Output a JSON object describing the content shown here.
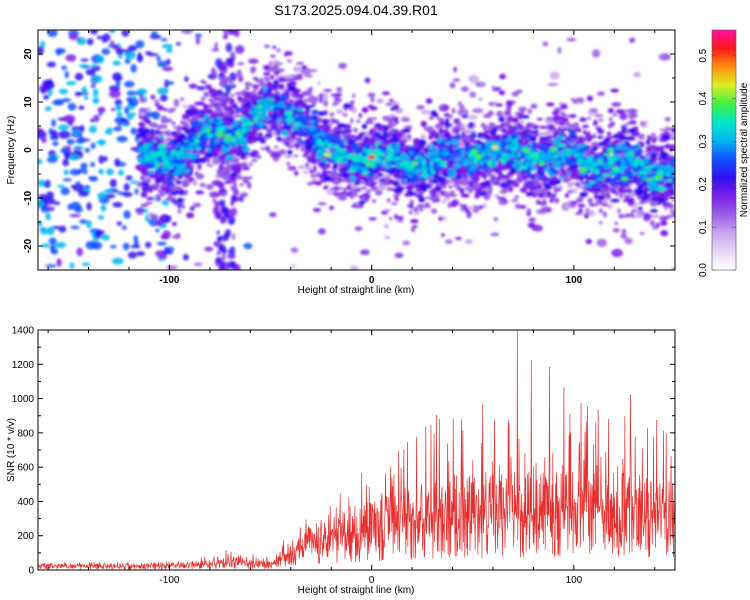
{
  "title": "S173.2025.094.04.39.R01",
  "colors": {
    "snr_line": "#e83030",
    "axis": "#000000"
  },
  "colormap": [
    "#ffffff",
    "#e6d6f6",
    "#c9a6ef",
    "#9a5ee6",
    "#7a1ee8",
    "#3010f0",
    "#1050ff",
    "#00b4f0",
    "#00e8c8",
    "#40f040",
    "#d8f020",
    "#ff9010",
    "#ff1818",
    "#ff10a0"
  ],
  "chart_data": [
    {
      "type": "heatmap",
      "xlabel": "Height of straight line (km)",
      "ylabel": "Frequency (Hz)",
      "xlim": [
        -165,
        150
      ],
      "ylim": [
        -25,
        25
      ],
      "xticks": [
        -100,
        0,
        100
      ],
      "yticks": [
        -20,
        -10,
        0,
        10,
        20
      ],
      "ridge": {
        "x": [
          -160,
          -140,
          -120,
          -105,
          -95,
          -85,
          -75,
          -65,
          -55,
          -45,
          -35,
          -25,
          -15,
          0,
          20,
          40,
          60,
          80,
          100,
          120,
          140,
          150
        ],
        "freq_hz": [
          -4,
          -4,
          -3,
          -2,
          -1,
          2,
          3,
          4,
          7,
          9,
          7,
          0,
          -1,
          -1,
          -3,
          -2,
          -1,
          -1,
          -2,
          -3,
          -5,
          -4
        ]
      },
      "peaks": [
        {
          "x": 0,
          "freq_hz": -1.5,
          "amplitude": 0.5
        },
        {
          "x": -22,
          "freq_hz": -1,
          "amplitude": 0.45
        },
        {
          "x": 61,
          "freq_hz": 0.5,
          "amplitude": 0.42
        },
        {
          "x": 125,
          "freq_hz": -6,
          "amplitude": 0.38
        },
        {
          "x": -80,
          "freq_hz": 3,
          "amplitude": 0.35
        }
      ],
      "colorbar": {
        "label": "Normalized spectral amplitude",
        "range": [
          0,
          0.56
        ],
        "ticks": [
          "0.0",
          "0.1",
          "0.2",
          "0.3",
          "0.4",
          "0.5"
        ]
      }
    },
    {
      "type": "line",
      "xlabel": "Height of straight line (km)",
      "ylabel": "SNR (10 * v/v)",
      "xlim": [
        -165,
        150
      ],
      "ylim": [
        0,
        1400
      ],
      "xticks": [
        -100,
        0,
        100
      ],
      "yticks": [
        0,
        200,
        400,
        600,
        800,
        1000,
        1200,
        1400
      ],
      "series": [
        {
          "envelope_x": [
            -165,
            -100,
            -80,
            -70,
            -60,
            -50,
            -40,
            -30,
            -20,
            -10,
            0,
            10,
            20,
            40,
            60,
            80,
            100,
            120,
            140,
            150
          ],
          "envelope_mean": [
            22,
            25,
            38,
            48,
            45,
            32,
            110,
            160,
            200,
            230,
            255,
            280,
            310,
            340,
            350,
            360,
            365,
            360,
            340,
            330
          ],
          "envelope_max": [
            45,
            48,
            90,
            110,
            100,
            70,
            240,
            330,
            420,
            500,
            560,
            720,
            860,
            920,
            900,
            950,
            1000,
            950,
            900,
            850
          ],
          "spikes": [
            {
              "x": 72,
              "y": 1400
            },
            {
              "x": 79,
              "y": 1220
            },
            {
              "x": 88,
              "y": 1180
            },
            {
              "x": 32,
              "y": 900
            },
            {
              "x": 55,
              "y": 960
            },
            {
              "x": 95,
              "y": 1060
            },
            {
              "x": 112,
              "y": 930
            },
            {
              "x": 128,
              "y": 1020
            },
            {
              "x": 141,
              "y": 870
            },
            {
              "x": 148,
              "y": 660
            },
            {
              "x": 16,
              "y": 700
            },
            {
              "x": 45,
              "y": 810
            },
            {
              "x": -5,
              "y": 560
            },
            {
              "x": -72,
              "y": 110
            }
          ]
        }
      ]
    }
  ]
}
